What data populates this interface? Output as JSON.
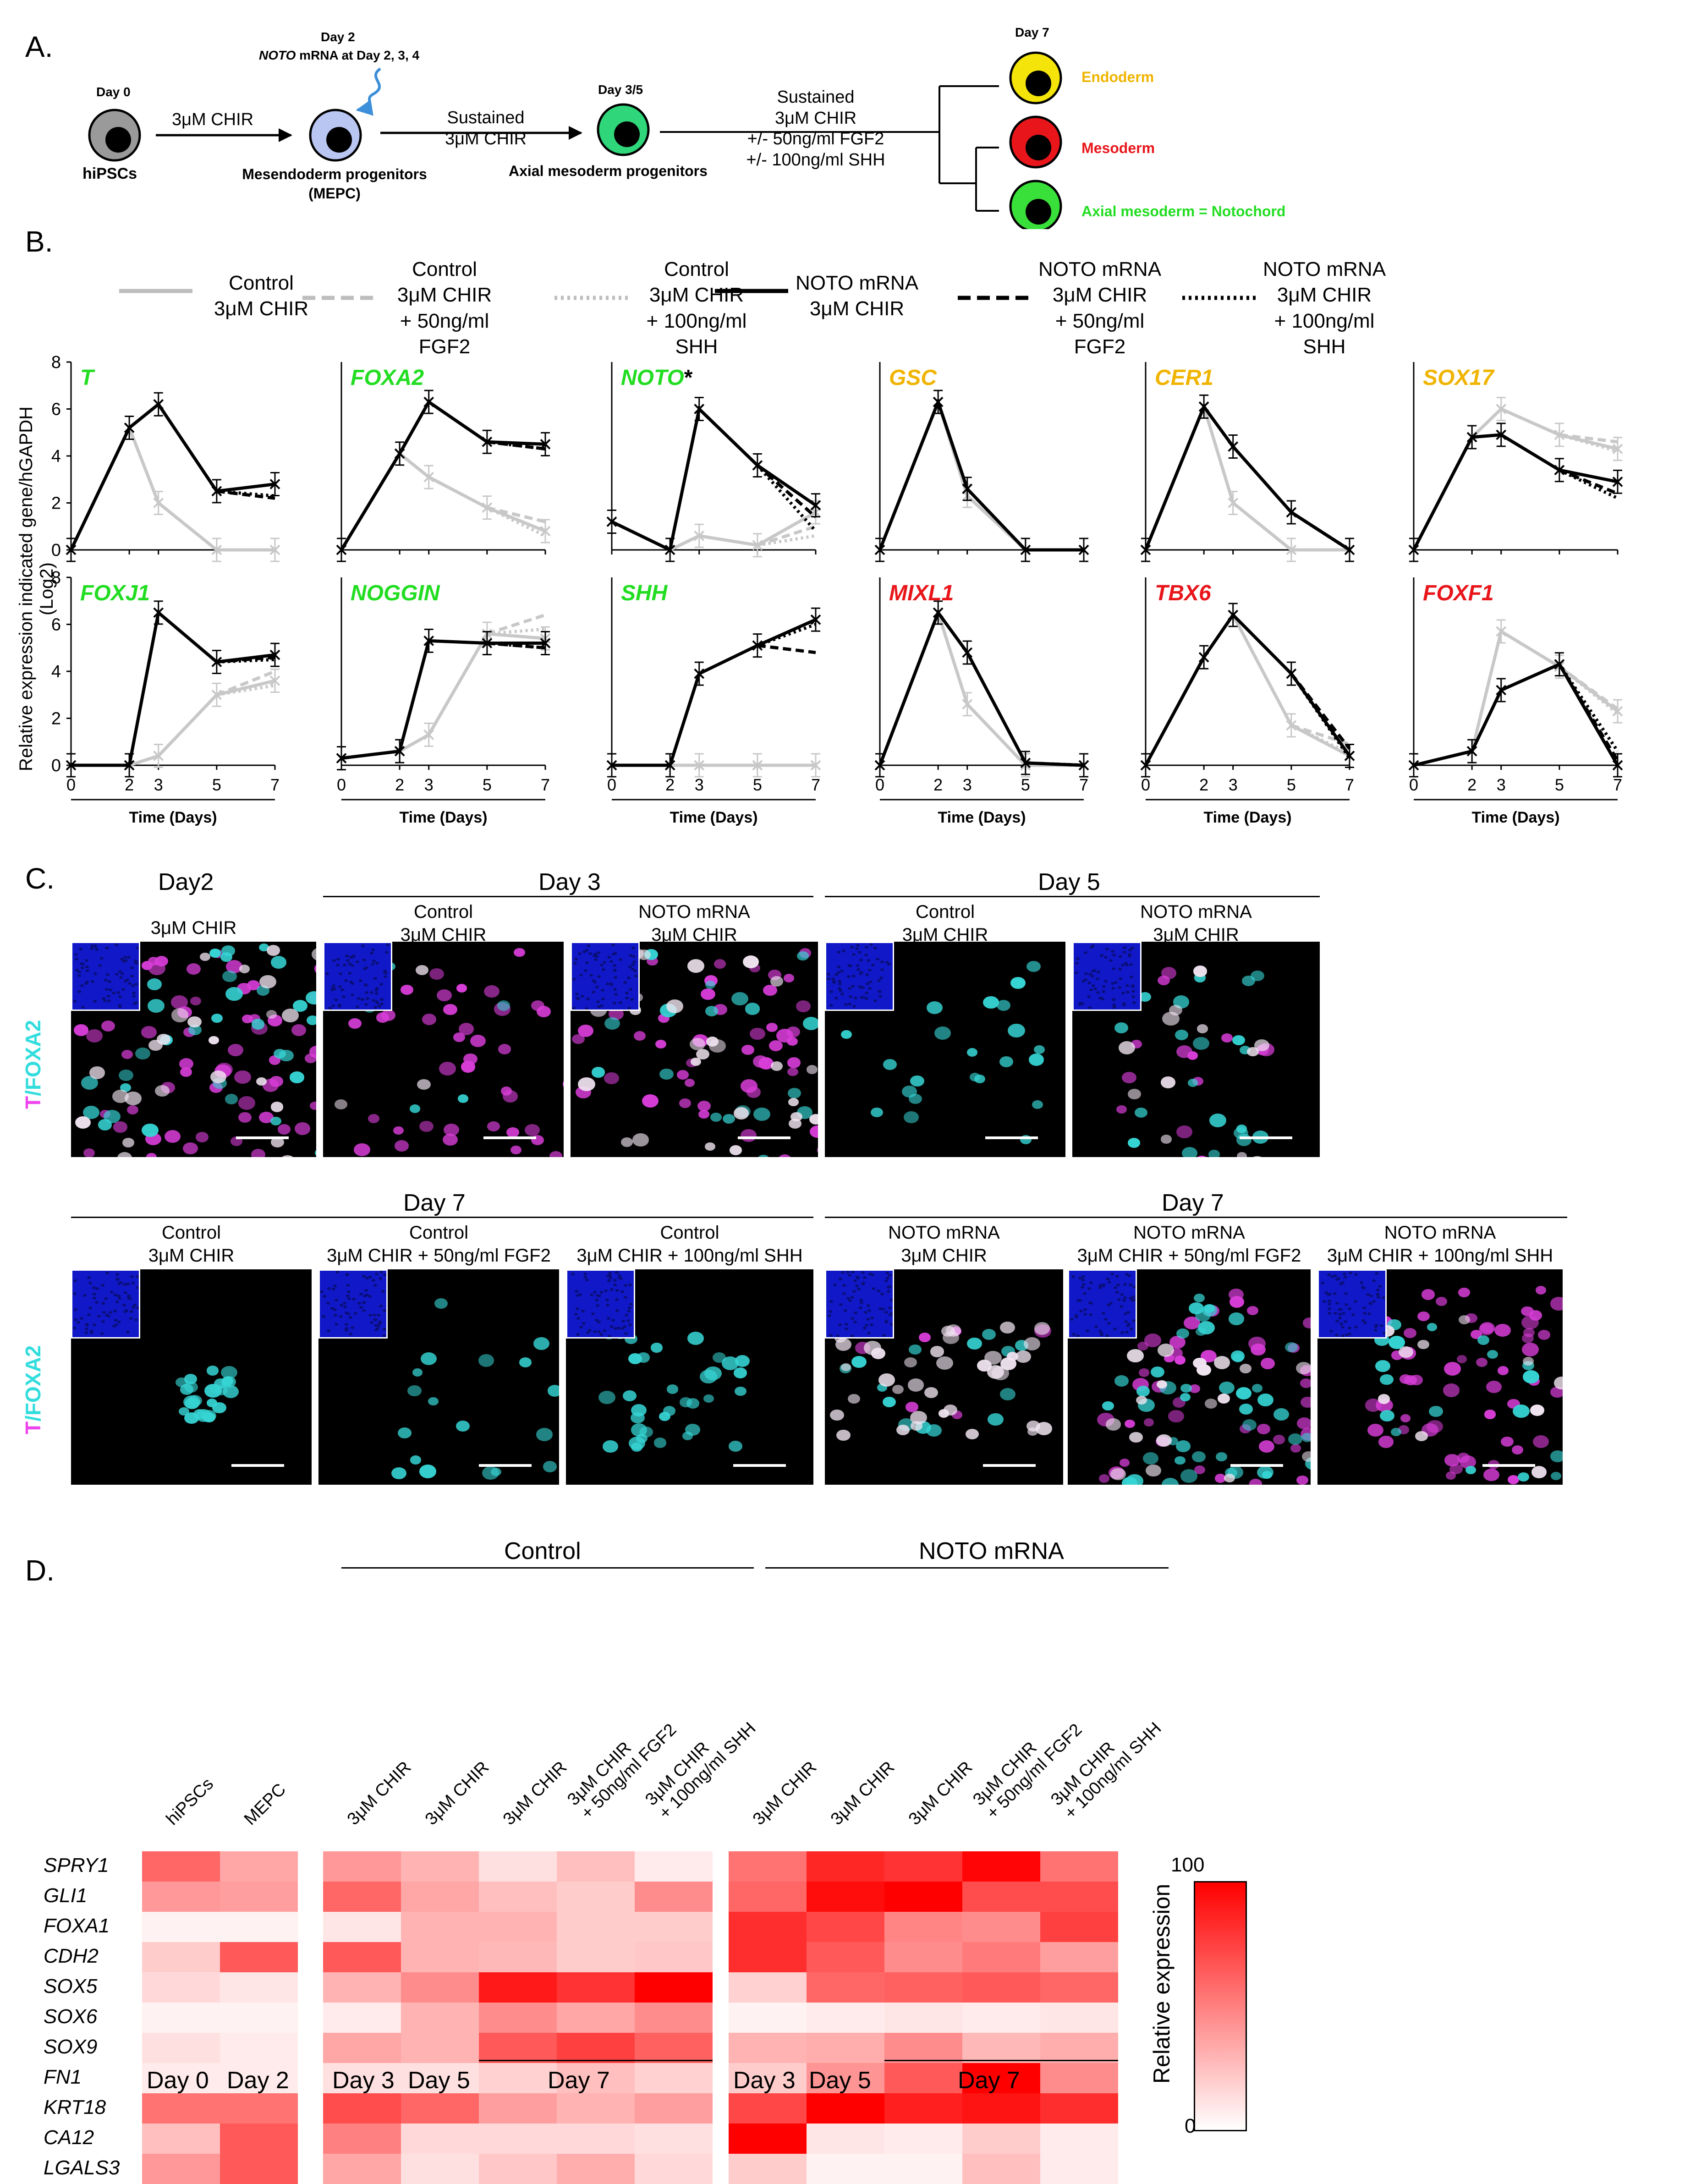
{
  "panels": {
    "a": "A.",
    "b": "B.",
    "c": "C.",
    "d": "D."
  },
  "panelA": {
    "day0_label": "Day 0",
    "hipscs_label": "hiPSCs",
    "step1_label": "3μM CHIR",
    "day2_label": "Day 2",
    "noto_word": "NOTO",
    "noto_rest": " mRNA at Day 2, 3, 4",
    "mepc_line1": "Mesendoderm progenitors",
    "mepc_line2": "(MEPC)",
    "step2_line1": "Sustained",
    "step2_line2": "3μM CHIR",
    "day35_label": "Day 3/5",
    "axial_label": "Axial mesoderm progenitors",
    "step3_line1": "Sustained",
    "step3_line2": "3μM CHIR",
    "step3_line3": "+/- 50ng/ml FGF2",
    "step3_line4": "+/- 100ng/ml SHH",
    "day7_label": "Day 7",
    "endoderm": "Endoderm",
    "mesoderm": "Mesoderm",
    "notochord": "Axial mesoderm = Notochord",
    "colors": {
      "hipsc": "#9a9a9a",
      "mepc": "#b9c6f2",
      "axial": "#2fd67a",
      "endoderm": "#f5e40a",
      "mesoderm": "#e8161b",
      "notochord": "#3ae03a",
      "endoderm_text": "#f0b400",
      "mesoderm_text": "#e8161b",
      "notochord_text": "#22dd22",
      "arrow_blue": "#3c8fd8"
    }
  },
  "legend": [
    {
      "line1": "Control",
      "line2": "3μM CHIR",
      "line3": "",
      "style": "solid",
      "color": "#bdbdbd"
    },
    {
      "line1": "Control",
      "line2": "3μM CHIR",
      "line3": "+ 50ng/ml FGF2",
      "style": "dashed",
      "color": "#bdbdbd"
    },
    {
      "line1": "Control",
      "line2": "3μM CHIR",
      "line3": "+ 100ng/ml SHH",
      "style": "dotted",
      "color": "#bdbdbd"
    },
    {
      "line1": "NOTO mRNA",
      "line2": "3μM CHIR",
      "line3": "",
      "style": "solid",
      "color": "#000000"
    },
    {
      "line1": "NOTO mRNA",
      "line2": "3μM CHIR",
      "line3": "+ 50ng/ml FGF2",
      "style": "dashed",
      "color": "#000000"
    },
    {
      "line1": "NOTO mRNA",
      "line2": "3μM CHIR",
      "line3": "+ 100ng/ml SHH",
      "style": "dotted",
      "color": "#000000"
    }
  ],
  "panelB": {
    "ylabel": "Relative expression indicated gene/hGAPDH (Log2)",
    "xlabel": "Time (Days)",
    "x": [
      0,
      2,
      3,
      5,
      7
    ],
    "ylim": [
      0,
      8
    ],
    "yticks": [
      0,
      2,
      4,
      6,
      8
    ]
  },
  "chart_data": {
    "type": "line",
    "x": [
      0,
      2,
      3,
      5,
      7
    ],
    "xlabel": "Time (Days)",
    "ylabel": "Relative expression indicated gene/hGAPDH (Log2)",
    "ylim": [
      0,
      8
    ],
    "genes": [
      {
        "name": "T",
        "asterisk": "",
        "color": "#22dd22",
        "ctrl": [
          0,
          5.2,
          2.0,
          0,
          0
        ],
        "noto": [
          0,
          5.2,
          6.2,
          2.5,
          2.8
        ],
        "ctrl_fgf2": 0,
        "ctrl_shh": 0,
        "noto_fgf2": 2.2,
        "noto_shh": 2.3
      },
      {
        "name": "FOXA2",
        "asterisk": "",
        "color": "#22dd22",
        "ctrl": [
          0,
          4.1,
          3.1,
          1.8,
          0.8
        ],
        "noto": [
          0,
          4.1,
          6.3,
          4.6,
          4.5
        ],
        "ctrl_fgf2": 1.2,
        "ctrl_shh": 0.6,
        "noto_fgf2": 4.3,
        "noto_shh": 4.3
      },
      {
        "name": "NOTO",
        "asterisk": "*",
        "color": "#22dd22",
        "ctrl": [
          1.2,
          0,
          0.6,
          0.2,
          1.6
        ],
        "noto": [
          1.2,
          0,
          6.0,
          3.6,
          1.9
        ],
        "ctrl_fgf2": 1.0,
        "ctrl_shh": 0.6,
        "noto_fgf2": 1.4,
        "noto_shh": 0.8
      },
      {
        "name": "GSC",
        "asterisk": "",
        "color": "#f0b400",
        "ctrl": [
          0,
          6.3,
          2.3,
          0,
          0
        ],
        "noto": [
          0,
          6.3,
          2.6,
          0,
          0
        ],
        "ctrl_fgf2": 0,
        "ctrl_shh": 0,
        "noto_fgf2": 0,
        "noto_shh": 0
      },
      {
        "name": "CER1",
        "asterisk": "",
        "color": "#f0b400",
        "ctrl": [
          0,
          6.1,
          2.0,
          0,
          0
        ],
        "noto": [
          0,
          6.1,
          4.4,
          1.6,
          0
        ],
        "ctrl_fgf2": 0,
        "ctrl_shh": 0,
        "noto_fgf2": 0,
        "noto_shh": 0
      },
      {
        "name": "SOX17",
        "asterisk": "",
        "color": "#f0b400",
        "ctrl": [
          0,
          4.8,
          6.0,
          4.9,
          4.3
        ],
        "noto": [
          0,
          4.8,
          4.9,
          3.4,
          2.9
        ],
        "ctrl_fgf2": 4.6,
        "ctrl_shh": 4.2,
        "noto_fgf2": 2.4,
        "noto_shh": 2.2
      },
      {
        "name": "FOXJ1",
        "asterisk": "",
        "color": "#22dd22",
        "ctrl": [
          0,
          0,
          0.4,
          3.0,
          3.6
        ],
        "noto": [
          0,
          0,
          6.5,
          4.4,
          4.7
        ],
        "ctrl_fgf2": 4.0,
        "ctrl_shh": 3.4,
        "noto_fgf2": 4.6,
        "noto_shh": 4.5
      },
      {
        "name": "NOGGIN",
        "asterisk": "",
        "color": "#22dd22",
        "ctrl": [
          0.3,
          0.6,
          1.3,
          5.6,
          5.4
        ],
        "noto": [
          0.3,
          0.6,
          5.3,
          5.2,
          5.2
        ],
        "ctrl_fgf2": 6.4,
        "ctrl_shh": 5.8,
        "noto_fgf2": 5.0,
        "noto_shh": 5.0
      },
      {
        "name": "SHH",
        "asterisk": "",
        "color": "#22dd22",
        "ctrl": [
          0,
          0,
          0,
          0,
          0
        ],
        "noto": [
          0,
          0,
          3.9,
          5.1,
          6.2
        ],
        "ctrl_fgf2": 0,
        "ctrl_shh": 0,
        "noto_fgf2": 4.8,
        "noto_shh": 6.0
      },
      {
        "name": "MIXL1",
        "asterisk": "",
        "color": "#e8161b",
        "ctrl": [
          0,
          6.5,
          2.6,
          0,
          0
        ],
        "noto": [
          0,
          6.5,
          4.8,
          0.1,
          0
        ],
        "ctrl_fgf2": 0,
        "ctrl_shh": 0,
        "noto_fgf2": 0,
        "noto_shh": 0
      },
      {
        "name": "TBX6",
        "asterisk": "",
        "color": "#e8161b",
        "ctrl": [
          0,
          4.6,
          6.4,
          1.7,
          0.4
        ],
        "noto": [
          0,
          4.6,
          6.4,
          3.9,
          0.4
        ],
        "ctrl_fgf2": 0.9,
        "ctrl_shh": 0.5,
        "noto_fgf2": 0.7,
        "noto_shh": 0.3
      },
      {
        "name": "FOXF1",
        "asterisk": "",
        "color": "#e8161b",
        "ctrl": [
          0,
          0.6,
          5.7,
          4.2,
          2.3
        ],
        "noto": [
          0,
          0.6,
          3.2,
          4.3,
          0
        ],
        "ctrl_fgf2": 2.4,
        "ctrl_shh": 2.2,
        "noto_fgf2": 0.2,
        "noto_shh": 0.6
      }
    ]
  },
  "panelC": {
    "stain_T": "T",
    "stain_slash": "/",
    "stain_FOXA2": "FOXA2",
    "row1_groups": [
      {
        "title": "Day2"
      },
      {
        "title": "Day 3"
      },
      {
        "title": "Day 5"
      }
    ],
    "row2_groups": [
      {
        "title": "Day 7"
      },
      {
        "title": "Day 7"
      }
    ],
    "row1_images": [
      {
        "line1": "3μM CHIR",
        "line2": ""
      },
      {
        "line1": "Control",
        "line2": "3μM CHIR"
      },
      {
        "line1": "NOTO mRNA",
        "line2": "3μM CHIR"
      },
      {
        "line1": "Control",
        "line2": "3μM CHIR"
      },
      {
        "line1": "NOTO mRNA",
        "line2": "3μM CHIR"
      }
    ],
    "row2_images": [
      {
        "line1": "Control",
        "line2": "3μM CHIR"
      },
      {
        "line1": "Control",
        "line2": "3μM CHIR + 50ng/ml FGF2"
      },
      {
        "line1": "Control",
        "line2": "3μM CHIR + 100ng/ml SHH"
      },
      {
        "line1": "NOTO mRNA",
        "line2": "3μM CHIR"
      },
      {
        "line1": "NOTO mRNA",
        "line2": "3μM CHIR + 50ng/ml FGF2"
      },
      {
        "line1": "NOTO mRNA",
        "line2": "3μM CHIR + 100ng/ml SHH"
      }
    ],
    "colors": {
      "T": "#ee44ee",
      "FOXA2": "#33dddd",
      "dapi": "#1018c8"
    }
  },
  "panelD": {
    "group_control": "Control",
    "group_noto": "NOTO mRNA",
    "columns": [
      "hiPSCs",
      "MEPC",
      "3μM CHIR",
      "3μM CHIR",
      "3μM CHIR\n+ 50ng/ml FGF2",
      "3μM CHIR\n+ 100ng/ml SHH",
      "3μM CHIR",
      "3μM CHIR",
      "3μM CHIR",
      "3μM CHIR\n+ 50ng/ml FGF2",
      "3μM CHIR\n+ 100ng/ml SHH"
    ],
    "columns_ctrl_day7": "3μM CHIR",
    "columns_noto_day7": "3μM CHIR",
    "genes": [
      "SPRY1",
      "GLI1",
      "FOXA1",
      "CDH2",
      "SOX5",
      "SOX6",
      "SOX9",
      "FN1",
      "KRT18",
      "CA12",
      "LGALS3"
    ],
    "bottom_labels": [
      "Day 0",
      "Day 2",
      "Day 3",
      "Day 5",
      "Day 7",
      "Day 3",
      "Day 5",
      "Day 7"
    ],
    "legend_title": "Relative expression",
    "legend_max": "100",
    "legend_min": "0",
    "color_max": "#ff0000",
    "color_min": "#ffffff",
    "matrix_left": [
      [
        60,
        35
      ],
      [
        40,
        38
      ],
      [
        5,
        5
      ],
      [
        20,
        65
      ],
      [
        15,
        10
      ],
      [
        5,
        5
      ],
      [
        12,
        8
      ],
      [
        8,
        8
      ],
      [
        55,
        55
      ],
      [
        25,
        65
      ],
      [
        40,
        65
      ]
    ],
    "matrix_ctrl": [
      [
        40,
        30,
        12,
        25,
        8
      ],
      [
        60,
        35,
        25,
        20,
        45
      ],
      [
        10,
        30,
        30,
        20,
        20
      ],
      [
        65,
        30,
        28,
        20,
        22
      ],
      [
        30,
        45,
        90,
        80,
        100
      ],
      [
        8,
        30,
        45,
        35,
        45
      ],
      [
        35,
        30,
        65,
        75,
        62
      ],
      [
        12,
        12,
        18,
        25,
        18
      ],
      [
        70,
        60,
        38,
        30,
        38
      ],
      [
        50,
        15,
        15,
        15,
        12
      ],
      [
        35,
        12,
        22,
        32,
        15
      ]
    ],
    "matrix_noto": [
      [
        55,
        85,
        80,
        98,
        55
      ],
      [
        60,
        95,
        100,
        70,
        70
      ],
      [
        82,
        72,
        48,
        45,
        75
      ],
      [
        82,
        65,
        45,
        52,
        38
      ],
      [
        18,
        60,
        62,
        65,
        60
      ],
      [
        5,
        8,
        10,
        8,
        10
      ],
      [
        30,
        32,
        45,
        28,
        32
      ],
      [
        20,
        42,
        65,
        100,
        45
      ],
      [
        72,
        100,
        88,
        92,
        82
      ],
      [
        100,
        10,
        8,
        20,
        8
      ],
      [
        20,
        5,
        5,
        25,
        8
      ]
    ]
  }
}
